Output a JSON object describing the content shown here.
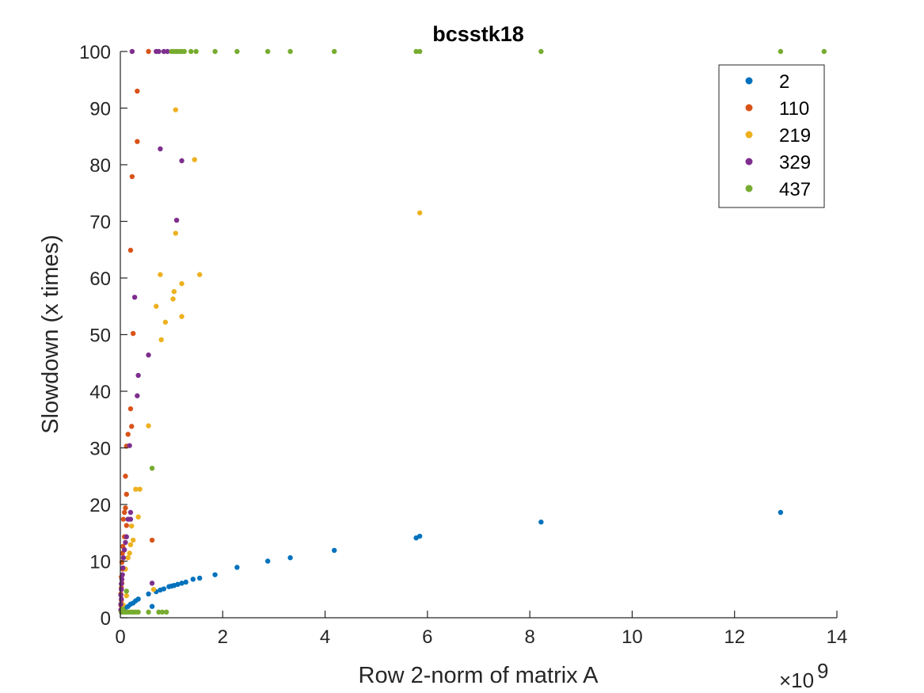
{
  "chart_data": {
    "type": "scatter",
    "title": "bcsstk18",
    "xlabel": "Row 2-norm of matrix A",
    "ylabel": "Slowdown (x times)",
    "x_multiplier_label": "×10",
    "x_multiplier_exponent": "9",
    "x_multiplier": 1000000000,
    "xlim": [
      0,
      14
    ],
    "ylim": [
      0,
      100
    ],
    "xticks": [
      "0",
      "2",
      "4",
      "6",
      "8",
      "10",
      "12",
      "14"
    ],
    "yticks": [
      "0",
      "10",
      "20",
      "30",
      "40",
      "50",
      "60",
      "70",
      "80",
      "90",
      "100"
    ],
    "grid": false,
    "legend_position": "top-right",
    "series": [
      {
        "name": "2",
        "color": "#0072BD",
        "points": [
          [
            0.02,
            1.0
          ],
          [
            0.05,
            1.2
          ],
          [
            0.08,
            1.5
          ],
          [
            0.1,
            1.8
          ],
          [
            0.15,
            2.0
          ],
          [
            0.2,
            2.4
          ],
          [
            0.25,
            2.6
          ],
          [
            0.3,
            3.0
          ],
          [
            0.35,
            3.3
          ],
          [
            0.55,
            4.2
          ],
          [
            0.62,
            2.0
          ],
          [
            0.7,
            4.6
          ],
          [
            0.78,
            4.9
          ],
          [
            0.85,
            5.1
          ],
          [
            0.95,
            5.5
          ],
          [
            1.0,
            5.6
          ],
          [
            1.05,
            5.7
          ],
          [
            1.12,
            5.9
          ],
          [
            1.2,
            6.1
          ],
          [
            1.28,
            6.3
          ],
          [
            1.42,
            6.8
          ],
          [
            1.55,
            7.0
          ],
          [
            1.85,
            7.6
          ],
          [
            2.28,
            8.9
          ],
          [
            2.88,
            10.0
          ],
          [
            3.32,
            10.6
          ],
          [
            4.18,
            11.9
          ],
          [
            5.78,
            14.1
          ],
          [
            5.85,
            14.4
          ],
          [
            8.22,
            16.9
          ],
          [
            12.9,
            18.6
          ]
        ]
      },
      {
        "name": "110",
        "color": "#D95319",
        "points": [
          [
            0.55,
            100
          ],
          [
            0.33,
            93.0
          ],
          [
            0.33,
            84.1
          ],
          [
            0.23,
            77.9
          ],
          [
            0.2,
            64.9
          ],
          [
            0.25,
            50.2
          ],
          [
            0.2,
            36.9
          ],
          [
            0.22,
            33.8
          ],
          [
            0.15,
            32.4
          ],
          [
            0.12,
            30.3
          ],
          [
            0.1,
            25.0
          ],
          [
            0.12,
            21.8
          ],
          [
            0.1,
            19.4
          ],
          [
            0.08,
            18.6
          ],
          [
            0.06,
            17.4
          ],
          [
            0.12,
            16.3
          ],
          [
            0.08,
            14.3
          ],
          [
            0.62,
            13.7
          ],
          [
            0.05,
            12.6
          ],
          [
            0.04,
            11.4
          ],
          [
            0.03,
            9.8
          ],
          [
            0.05,
            8.6
          ],
          [
            0.02,
            7.2
          ],
          [
            0.03,
            6.1
          ],
          [
            0.02,
            5.3
          ],
          [
            0.01,
            4.2
          ],
          [
            0.02,
            3.1
          ],
          [
            0.01,
            2.2
          ],
          [
            0.01,
            1.3
          ]
        ]
      },
      {
        "name": "219",
        "color": "#EDB120",
        "points": [
          [
            1.08,
            89.7
          ],
          [
            1.45,
            80.9
          ],
          [
            5.85,
            71.5
          ],
          [
            1.08,
            67.9
          ],
          [
            0.78,
            60.6
          ],
          [
            1.55,
            60.6
          ],
          [
            1.2,
            59.0
          ],
          [
            1.05,
            57.6
          ],
          [
            1.03,
            56.3
          ],
          [
            0.7,
            55.0
          ],
          [
            0.88,
            52.2
          ],
          [
            1.2,
            53.2
          ],
          [
            0.8,
            49.1
          ],
          [
            0.55,
            33.9
          ],
          [
            0.3,
            22.7
          ],
          [
            0.38,
            22.7
          ],
          [
            0.35,
            17.8
          ],
          [
            0.22,
            16.2
          ],
          [
            0.25,
            13.7
          ],
          [
            0.2,
            12.9
          ],
          [
            0.18,
            11.4
          ],
          [
            0.15,
            10.6
          ],
          [
            0.1,
            8.6
          ],
          [
            0.65,
            5.0
          ],
          [
            0.12,
            3.9
          ],
          [
            0.05,
            2.3
          ],
          [
            0.03,
            1.4
          ]
        ]
      },
      {
        "name": "329",
        "color": "#7E2F8E",
        "points": [
          [
            0.23,
            100
          ],
          [
            0.7,
            100
          ],
          [
            0.75,
            100
          ],
          [
            0.85,
            100
          ],
          [
            0.92,
            100
          ],
          [
            0.78,
            82.8
          ],
          [
            1.2,
            80.7
          ],
          [
            1.1,
            70.2
          ],
          [
            0.28,
            56.6
          ],
          [
            0.55,
            46.4
          ],
          [
            0.35,
            42.8
          ],
          [
            0.33,
            39.2
          ],
          [
            0.18,
            30.4
          ],
          [
            0.2,
            18.6
          ],
          [
            0.15,
            17.4
          ],
          [
            0.2,
            17.4
          ],
          [
            0.12,
            14.3
          ],
          [
            0.1,
            13.3
          ],
          [
            0.08,
            12.0
          ],
          [
            0.06,
            10.6
          ],
          [
            0.05,
            8.8
          ],
          [
            0.04,
            7.6
          ],
          [
            0.03,
            6.8
          ],
          [
            0.02,
            6.0
          ],
          [
            0.62,
            6.1
          ],
          [
            0.02,
            5.0
          ],
          [
            0.01,
            4.0
          ],
          [
            0.02,
            3.3
          ],
          [
            0.01,
            2.4
          ],
          [
            0.01,
            1.4
          ]
        ]
      },
      {
        "name": "437",
        "color": "#77AC30",
        "points": [
          [
            1.0,
            100
          ],
          [
            1.05,
            100
          ],
          [
            1.1,
            100
          ],
          [
            1.15,
            100
          ],
          [
            1.2,
            100
          ],
          [
            1.25,
            100
          ],
          [
            1.38,
            100
          ],
          [
            1.48,
            100
          ],
          [
            1.85,
            100
          ],
          [
            2.28,
            100
          ],
          [
            2.88,
            100
          ],
          [
            3.32,
            100
          ],
          [
            4.18,
            100
          ],
          [
            5.78,
            100
          ],
          [
            5.85,
            100
          ],
          [
            8.22,
            100
          ],
          [
            12.9,
            100
          ],
          [
            13.75,
            100
          ],
          [
            0.62,
            26.4
          ],
          [
            0.12,
            4.7
          ],
          [
            0.02,
            1.0
          ],
          [
            0.06,
            1.0
          ],
          [
            0.1,
            1.0
          ],
          [
            0.15,
            1.0
          ],
          [
            0.2,
            1.0
          ],
          [
            0.25,
            1.0
          ],
          [
            0.3,
            1.0
          ],
          [
            0.35,
            1.0
          ],
          [
            0.55,
            1.0
          ],
          [
            0.75,
            1.0
          ],
          [
            0.82,
            1.0
          ],
          [
            0.9,
            1.0
          ],
          [
            0.05,
            1.5
          ]
        ]
      }
    ]
  }
}
